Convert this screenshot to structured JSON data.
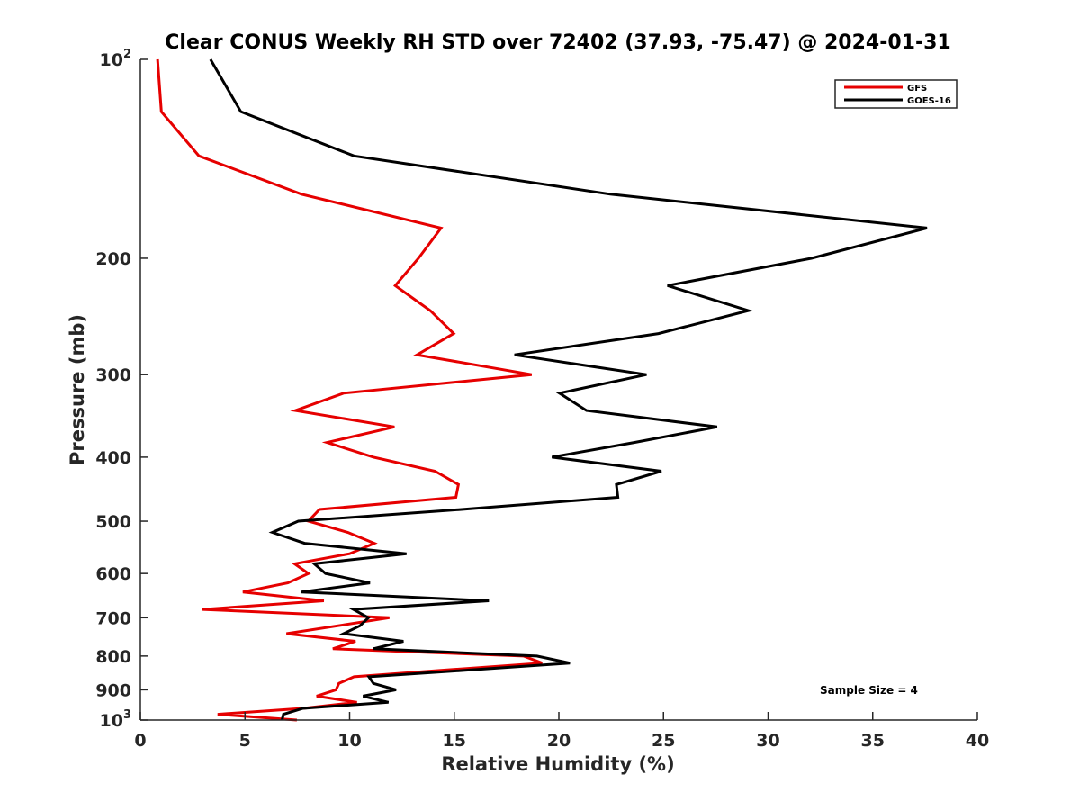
{
  "chart_data": {
    "type": "line",
    "title": "Clear CONUS Weekly RH STD over 72402 (37.93, -75.47) @ 2024-01-31",
    "xlabel": "Relative Humidity (%)",
    "ylabel": "Pressure (mb)",
    "xlim": [
      0,
      40
    ],
    "ylim": [
      100,
      1000
    ],
    "yscale": "log",
    "yreversed": true,
    "grid": false,
    "legend_position": "top-right",
    "x_ticks": [
      0,
      5,
      10,
      15,
      20,
      25,
      30,
      35,
      40
    ],
    "x_tick_labels": [
      "0",
      "5",
      "10",
      "15",
      "20",
      "25",
      "30",
      "35",
      "40"
    ],
    "y_ticks": [
      {
        "value": 100,
        "base": "10",
        "exp": "2"
      },
      {
        "value": 200,
        "label": "200"
      },
      {
        "value": 300,
        "label": "300"
      },
      {
        "value": 400,
        "label": "400"
      },
      {
        "value": 500,
        "label": "500"
      },
      {
        "value": 600,
        "label": "600"
      },
      {
        "value": 700,
        "label": "700"
      },
      {
        "value": 800,
        "label": "800"
      },
      {
        "value": 900,
        "label": "900"
      },
      {
        "value": 1000,
        "base": "10",
        "exp": "3"
      }
    ],
    "pressure_levels": [
      100,
      120,
      140,
      160,
      180,
      200,
      220,
      240,
      260,
      280,
      300,
      320,
      340,
      360,
      380,
      400,
      420,
      440,
      460,
      480,
      500,
      520,
      540,
      560,
      580,
      600,
      620,
      640,
      660,
      680,
      700,
      720,
      740,
      760,
      780,
      800,
      820,
      840,
      860,
      880,
      900,
      920,
      940,
      960,
      980,
      1000
    ],
    "series": [
      {
        "name": "GFS",
        "color": "#e60000",
        "values": [
          0.82,
          1.0,
          2.8,
          7.7,
          14.37,
          13.29,
          12.18,
          13.86,
          14.97,
          13.22,
          18.7,
          9.71,
          7.41,
          12.14,
          8.92,
          11.14,
          14.08,
          15.2,
          15.08,
          8.56,
          8.03,
          9.92,
          11.18,
          10.0,
          7.37,
          8.03,
          7.05,
          4.9,
          8.77,
          2.97,
          11.9,
          9.42,
          6.98,
          10.28,
          9.2,
          18.31,
          19.2,
          14.58,
          10.21,
          9.49,
          9.35,
          8.42,
          10.35,
          7.77,
          3.69,
          7.48
        ]
      },
      {
        "name": "GOES-16",
        "color": "#000000",
        "values": [
          3.35,
          4.8,
          10.21,
          22.46,
          37.59,
          32.07,
          25.19,
          29.06,
          24.76,
          17.88,
          24.19,
          20.03,
          21.32,
          27.56,
          23.6,
          19.67,
          24.9,
          22.75,
          22.82,
          15.34,
          7.55,
          6.31,
          7.85,
          12.72,
          8.31,
          8.85,
          10.97,
          7.7,
          16.66,
          10.18,
          10.9,
          10.49,
          9.71,
          12.57,
          11.14,
          18.95,
          20.53,
          15.73,
          10.92,
          11.14,
          12.22,
          10.64,
          11.86,
          7.77,
          6.84,
          6.77
        ]
      }
    ],
    "annotations": [
      {
        "text": "Sample Size = 4",
        "position": "bottom-right"
      }
    ]
  }
}
